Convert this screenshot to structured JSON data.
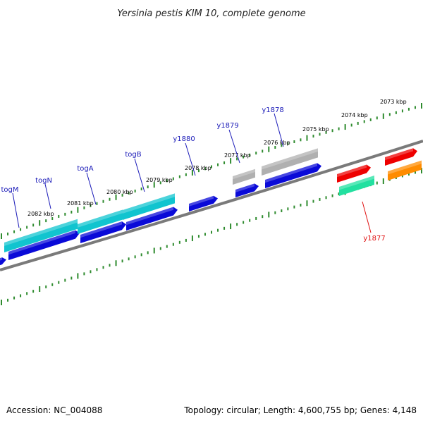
{
  "title": "Yersinia pestis KIM 10, complete genome",
  "footer": {
    "accession": "Accession: NC_004088",
    "summary": "Topology: circular; Length: 4,600,755 bp; Genes: 4,148"
  },
  "colors": {
    "backbone": "#7a7a7a",
    "tick": "#2e8b2e",
    "label_blue": "#1a1ab8",
    "label_red": "#e01010",
    "gene_blue": "#0a0ad8",
    "gene_cyan": "#11c4cf",
    "gene_gray": "#b0b0b0",
    "gene_red": "#ee0000",
    "gene_mint": "#22e0a0",
    "gene_orange": "#ff8c00"
  },
  "kbp_labels": [
    "2073 kbp",
    "2074 kbp",
    "2075 kbp",
    "2076 kbp",
    "2077 kbp",
    "2078 kbp",
    "2079 kbp",
    "2080 kbp",
    "2081 kbp",
    "2082 kbp"
  ],
  "gene_labels": [
    {
      "text": "togM",
      "color": "blue"
    },
    {
      "text": "togN",
      "color": "blue"
    },
    {
      "text": "togA",
      "color": "blue"
    },
    {
      "text": "togB",
      "color": "blue"
    },
    {
      "text": "y1880",
      "color": "blue"
    },
    {
      "text": "y1879",
      "color": "blue"
    },
    {
      "text": "y1878",
      "color": "blue"
    },
    {
      "text": "y1877",
      "color": "red"
    }
  ]
}
